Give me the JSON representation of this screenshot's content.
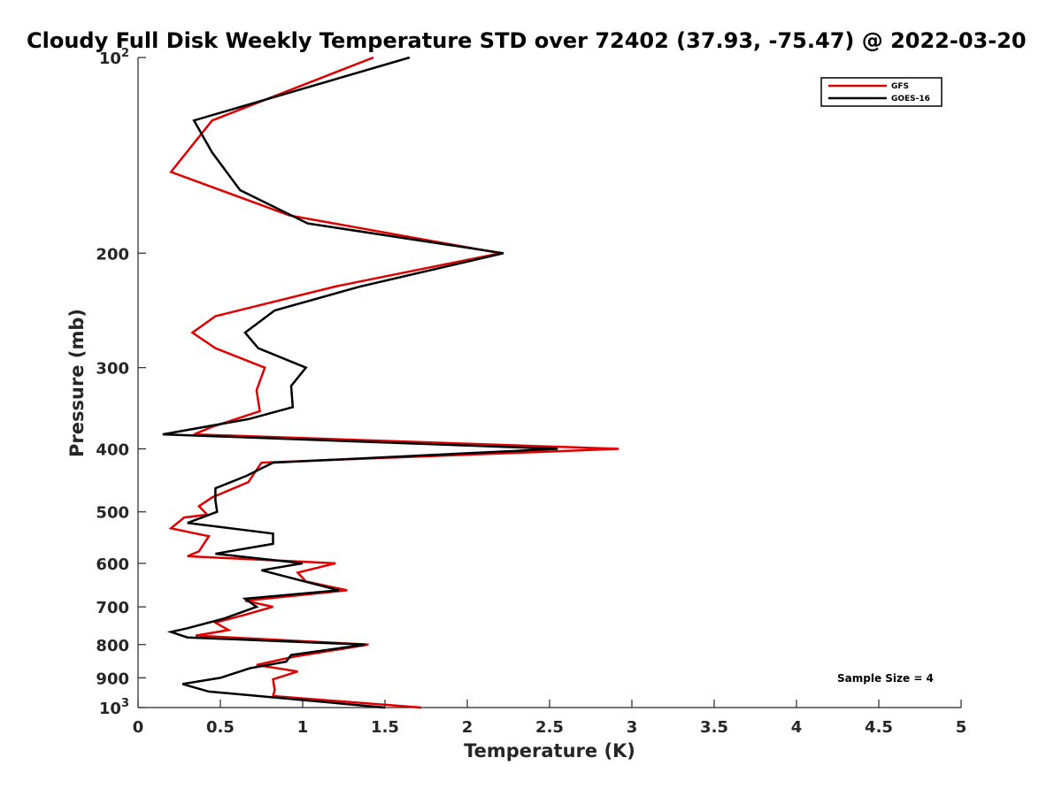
{
  "chart_data": {
    "type": "line",
    "title": "Cloudy Full Disk Weekly Temperature STD over 72402 (37.93, -75.47) @ 2022-03-20",
    "xlabel": "Temperature (K)",
    "ylabel": "Pressure (mb)",
    "xlim": [
      0,
      5
    ],
    "ylim": [
      100,
      1000
    ],
    "y_scale": "log",
    "y_reversed": true,
    "x_ticks": [
      "0",
      "0.5",
      "1",
      "1.5",
      "2",
      "2.5",
      "3",
      "3.5",
      "4",
      "4.5",
      "5"
    ],
    "y_ticks": [
      {
        "value": 100,
        "label": "10",
        "sup": "2"
      },
      {
        "value": 200,
        "label": "200",
        "sup": ""
      },
      {
        "value": 300,
        "label": "300",
        "sup": ""
      },
      {
        "value": 400,
        "label": "400",
        "sup": ""
      },
      {
        "value": 500,
        "label": "500",
        "sup": ""
      },
      {
        "value": 600,
        "label": "600",
        "sup": ""
      },
      {
        "value": 700,
        "label": "700",
        "sup": ""
      },
      {
        "value": 800,
        "label": "800",
        "sup": ""
      },
      {
        "value": 900,
        "label": "900",
        "sup": ""
      },
      {
        "value": 1000,
        "label": "10",
        "sup": "3"
      }
    ],
    "grid": false,
    "legend_position": "top-right",
    "annotation": "Sample Size = 4",
    "series": [
      {
        "name": "GFS",
        "color": "#e00000",
        "points": [
          [
            1.43,
            100
          ],
          [
            0.45,
            125
          ],
          [
            0.2,
            150
          ],
          [
            0.92,
            175
          ],
          [
            2.2,
            200
          ],
          [
            1.2,
            225
          ],
          [
            0.47,
            250
          ],
          [
            0.33,
            265
          ],
          [
            0.47,
            280
          ],
          [
            0.77,
            300
          ],
          [
            0.72,
            325
          ],
          [
            0.74,
            350
          ],
          [
            0.45,
            370
          ],
          [
            0.34,
            380
          ],
          [
            2.92,
            400
          ],
          [
            0.75,
            420
          ],
          [
            0.67,
            450
          ],
          [
            0.45,
            475
          ],
          [
            0.37,
            490
          ],
          [
            0.42,
            505
          ],
          [
            0.28,
            510
          ],
          [
            0.2,
            530
          ],
          [
            0.43,
            545
          ],
          [
            0.37,
            575
          ],
          [
            0.3,
            585
          ],
          [
            1.2,
            600
          ],
          [
            0.97,
            620
          ],
          [
            1.02,
            640
          ],
          [
            1.27,
            660
          ],
          [
            0.65,
            685
          ],
          [
            0.82,
            700
          ],
          [
            0.65,
            720
          ],
          [
            0.47,
            740
          ],
          [
            0.55,
            760
          ],
          [
            0.35,
            775
          ],
          [
            1.4,
            800
          ],
          [
            0.95,
            835
          ],
          [
            0.72,
            860
          ],
          [
            0.97,
            880
          ],
          [
            0.82,
            905
          ],
          [
            0.83,
            940
          ],
          [
            0.82,
            960
          ],
          [
            1.72,
            1000
          ]
        ]
      },
      {
        "name": "GOES-16",
        "color": "#000000",
        "points": [
          [
            1.65,
            100
          ],
          [
            0.34,
            125
          ],
          [
            0.45,
            140
          ],
          [
            0.62,
            160
          ],
          [
            1.03,
            180
          ],
          [
            2.22,
            200
          ],
          [
            1.35,
            225
          ],
          [
            0.83,
            245
          ],
          [
            0.65,
            265
          ],
          [
            0.73,
            280
          ],
          [
            1.02,
            300
          ],
          [
            0.93,
            320
          ],
          [
            0.94,
            345
          ],
          [
            0.67,
            360
          ],
          [
            0.15,
            380
          ],
          [
            2.55,
            400
          ],
          [
            0.82,
            420
          ],
          [
            0.66,
            440
          ],
          [
            0.47,
            460
          ],
          [
            0.47,
            480
          ],
          [
            0.48,
            500
          ],
          [
            0.3,
            520
          ],
          [
            0.82,
            540
          ],
          [
            0.82,
            560
          ],
          [
            0.47,
            580
          ],
          [
            1.0,
            600
          ],
          [
            0.75,
            615
          ],
          [
            1.22,
            660
          ],
          [
            0.65,
            680
          ],
          [
            0.72,
            700
          ],
          [
            0.52,
            730
          ],
          [
            0.3,
            755
          ],
          [
            0.2,
            765
          ],
          [
            0.3,
            780
          ],
          [
            1.38,
            800
          ],
          [
            0.93,
            830
          ],
          [
            0.9,
            850
          ],
          [
            0.68,
            870
          ],
          [
            0.5,
            900
          ],
          [
            0.27,
            920
          ],
          [
            0.43,
            945
          ],
          [
            1.5,
            1000
          ]
        ]
      }
    ]
  }
}
